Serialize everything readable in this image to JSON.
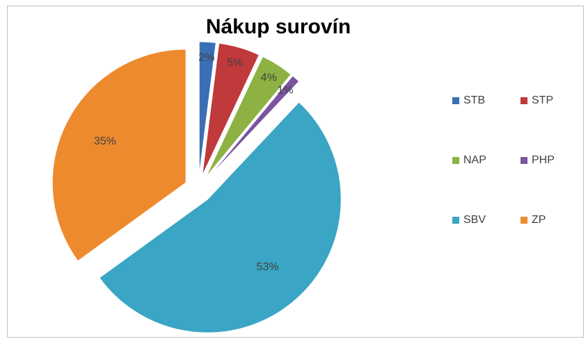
{
  "chart_data": {
    "type": "pie",
    "title": "Nákup surovín",
    "categories": [
      "STB",
      "STP",
      "NAP",
      "PHP",
      "SBV",
      "ZP"
    ],
    "values": [
      2,
      5,
      4,
      1,
      53,
      35
    ],
    "value_labels": [
      "2%",
      "5%",
      "4%",
      "1%",
      "53%",
      "35%"
    ],
    "colors": [
      "#3a6fb5",
      "#c0393b",
      "#8db243",
      "#7b559e",
      "#3aa5c4",
      "#ee8a2e"
    ],
    "legend": "right"
  }
}
